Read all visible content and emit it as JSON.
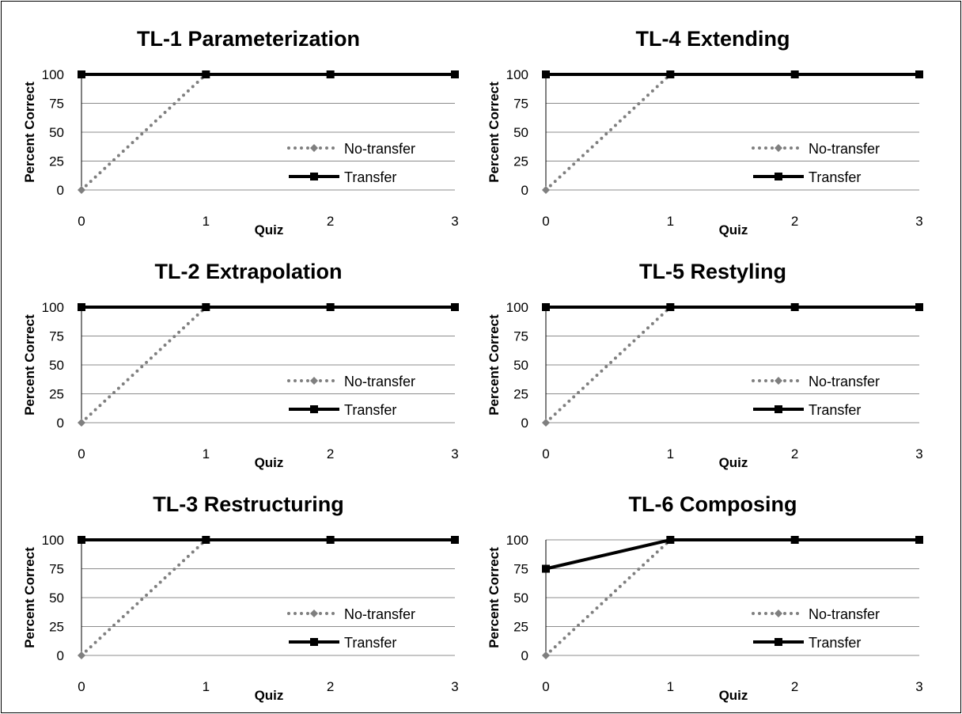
{
  "chart_data": [
    {
      "type": "line",
      "title": "TL-1 Parameterization",
      "xlabel": "Quiz",
      "ylabel": "Percent Correct",
      "x": [
        0,
        1,
        2,
        3
      ],
      "xlim": [
        0,
        3
      ],
      "ylim": [
        0,
        100
      ],
      "yticks": [
        0,
        25,
        50,
        75,
        100
      ],
      "grid": true,
      "legend_position": "right",
      "series": [
        {
          "name": "No-transfer",
          "x": [
            0,
            1
          ],
          "values": [
            0,
            100
          ],
          "style": "dotted",
          "marker": "diamond",
          "color": "#7f7f7f"
        },
        {
          "name": "Transfer",
          "x": [
            0,
            1,
            2,
            3
          ],
          "values": [
            100,
            100,
            100,
            100
          ],
          "style": "solid",
          "marker": "square",
          "color": "#000000"
        }
      ]
    },
    {
      "type": "line",
      "title": "TL-4 Extending",
      "xlabel": "Quiz",
      "ylabel": "Percent Correct",
      "x": [
        0,
        1,
        2,
        3
      ],
      "xlim": [
        0,
        3
      ],
      "ylim": [
        0,
        100
      ],
      "yticks": [
        0,
        25,
        50,
        75,
        100
      ],
      "grid": true,
      "legend_position": "right",
      "series": [
        {
          "name": "No-transfer",
          "x": [
            0,
            1
          ],
          "values": [
            0,
            100
          ],
          "style": "dotted",
          "marker": "diamond",
          "color": "#7f7f7f"
        },
        {
          "name": "Transfer",
          "x": [
            0,
            1,
            2,
            3
          ],
          "values": [
            100,
            100,
            100,
            100
          ],
          "style": "solid",
          "marker": "square",
          "color": "#000000"
        }
      ]
    },
    {
      "type": "line",
      "title": "TL-2 Extrapolation",
      "xlabel": "Quiz",
      "ylabel": "Percent Correct",
      "x": [
        0,
        1,
        2,
        3
      ],
      "xlim": [
        0,
        3
      ],
      "ylim": [
        0,
        100
      ],
      "yticks": [
        0,
        25,
        50,
        75,
        100
      ],
      "grid": true,
      "legend_position": "right",
      "series": [
        {
          "name": "No-transfer",
          "x": [
            0,
            1
          ],
          "values": [
            0,
            100
          ],
          "style": "dotted",
          "marker": "diamond",
          "color": "#7f7f7f"
        },
        {
          "name": "Transfer",
          "x": [
            0,
            1,
            2,
            3
          ],
          "values": [
            100,
            100,
            100,
            100
          ],
          "style": "solid",
          "marker": "square",
          "color": "#000000"
        }
      ]
    },
    {
      "type": "line",
      "title": "TL-5 Restyling",
      "xlabel": "Quiz",
      "ylabel": "Percent Correct",
      "x": [
        0,
        1,
        2,
        3
      ],
      "xlim": [
        0,
        3
      ],
      "ylim": [
        0,
        100
      ],
      "yticks": [
        0,
        25,
        50,
        75,
        100
      ],
      "grid": true,
      "legend_position": "right",
      "series": [
        {
          "name": "No-transfer",
          "x": [
            0,
            1
          ],
          "values": [
            0,
            100
          ],
          "style": "dotted",
          "marker": "diamond",
          "color": "#7f7f7f"
        },
        {
          "name": "Transfer",
          "x": [
            0,
            1,
            2,
            3
          ],
          "values": [
            100,
            100,
            100,
            100
          ],
          "style": "solid",
          "marker": "square",
          "color": "#000000"
        }
      ]
    },
    {
      "type": "line",
      "title": "TL-3 Restructuring",
      "xlabel": "Quiz",
      "ylabel": "Percent Correct",
      "x": [
        0,
        1,
        2,
        3
      ],
      "xlim": [
        0,
        3
      ],
      "ylim": [
        0,
        100
      ],
      "yticks": [
        0,
        25,
        50,
        75,
        100
      ],
      "grid": true,
      "legend_position": "right",
      "series": [
        {
          "name": "No-transfer",
          "x": [
            0,
            1
          ],
          "values": [
            0,
            100
          ],
          "style": "dotted",
          "marker": "diamond",
          "color": "#7f7f7f"
        },
        {
          "name": "Transfer",
          "x": [
            0,
            1,
            2,
            3
          ],
          "values": [
            100,
            100,
            100,
            100
          ],
          "style": "solid",
          "marker": "square",
          "color": "#000000"
        }
      ]
    },
    {
      "type": "line",
      "title": "TL-6 Composing",
      "xlabel": "Quiz",
      "ylabel": "Percent Correct",
      "x": [
        0,
        1,
        2,
        3
      ],
      "xlim": [
        0,
        3
      ],
      "ylim": [
        0,
        100
      ],
      "yticks": [
        0,
        25,
        50,
        75,
        100
      ],
      "grid": true,
      "legend_position": "right",
      "series": [
        {
          "name": "No-transfer",
          "x": [
            0,
            1
          ],
          "values": [
            0,
            100
          ],
          "style": "dotted",
          "marker": "diamond",
          "color": "#7f7f7f"
        },
        {
          "name": "Transfer",
          "x": [
            0,
            1,
            2,
            3
          ],
          "values": [
            75,
            100,
            100,
            100
          ],
          "style": "solid",
          "marker": "square",
          "color": "#000000"
        }
      ]
    }
  ]
}
